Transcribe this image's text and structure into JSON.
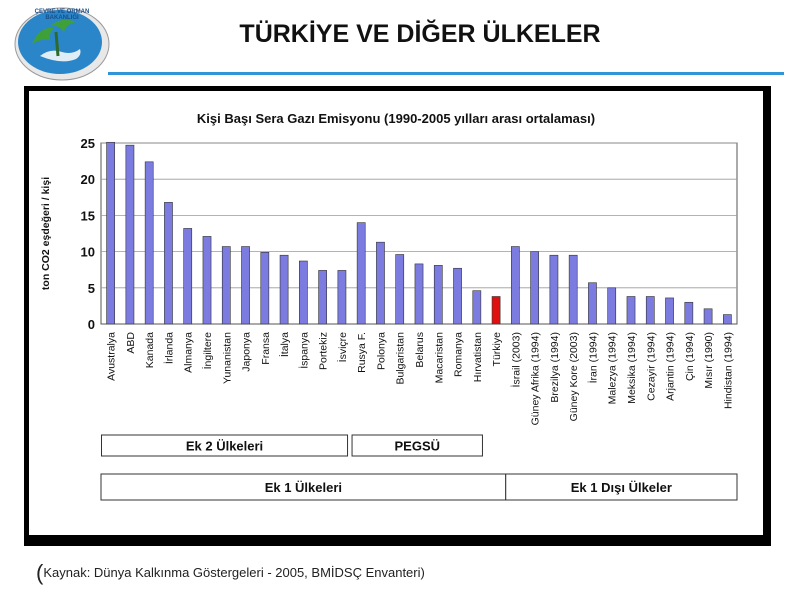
{
  "header": {
    "title": "TÜRKİYE VE DİĞER ÜLKELER",
    "logo_text_top": "ÇEVRE VE ORMAN",
    "logo_text_bottom": "BAKANLIĞI"
  },
  "colors": {
    "bar": "#7b7be0",
    "highlight": "#e01010",
    "accent_rule": "#2f95d6",
    "frame": "#000000"
  },
  "chart_data": {
    "type": "bar",
    "title": "Kişi Başı Sera Gazı Emisyonu (1990-2005 yılları arası ortalaması)",
    "ylabel": "ton CO2 eşdeğeri / kişi",
    "ylim": [
      0,
      25
    ],
    "yticks": [
      0,
      5,
      10,
      15,
      20,
      25
    ],
    "grid": true,
    "categories": [
      "Avustralya",
      "ABD",
      "Kanada",
      "İrlanda",
      "Almanya",
      "İngiltere",
      "Yunanistan",
      "Japonya",
      "Fransa",
      "İtalya",
      "İspanya",
      "Portekiz",
      "İsviçre",
      "Rusya F.",
      "Polonya",
      "Bulgaristan",
      "Belarus",
      "Macaristan",
      "Romanya",
      "Hırvatistan",
      "Türkiye",
      "İsrail (2003)",
      "Güney Afrika (1994)",
      "Brezilya (1994)",
      "Güney Kore (2003)",
      "İran (1994)",
      "Malezya (1994)",
      "Meksika (1994)",
      "Cezayir (1994)",
      "Arjantin (1994)",
      "Çin (1994)",
      "Mısır (1990)",
      "Hindistan (1994)"
    ],
    "values": [
      25.1,
      24.7,
      22.4,
      16.8,
      13.2,
      12.1,
      10.7,
      10.7,
      9.9,
      9.5,
      8.7,
      7.4,
      7.4,
      14.0,
      11.3,
      9.6,
      8.3,
      8.1,
      7.7,
      4.6,
      3.8,
      10.7,
      10.0,
      9.5,
      9.5,
      5.7,
      5.0,
      3.8,
      3.8,
      3.6,
      3.0,
      2.1,
      1.3
    ],
    "highlight_index": 20,
    "groups": [
      {
        "label": "Ek 2 Ülkeleri",
        "start": 0,
        "end": 12,
        "row": 1
      },
      {
        "label": "PEGSÜ",
        "start": 13,
        "end": 19,
        "row": 1
      },
      {
        "label": "Ek 1 Ülkeleri",
        "start": 0,
        "end": 20,
        "row": 2
      },
      {
        "label": "Ek 1 Dışı Ülkeler",
        "start": 21,
        "end": 32,
        "row": 2
      }
    ]
  },
  "footer": {
    "paren": "(",
    "source": "Kaynak: Dünya Kalkınma Göstergeleri - 2005, BMİDSÇ Envanteri)"
  }
}
